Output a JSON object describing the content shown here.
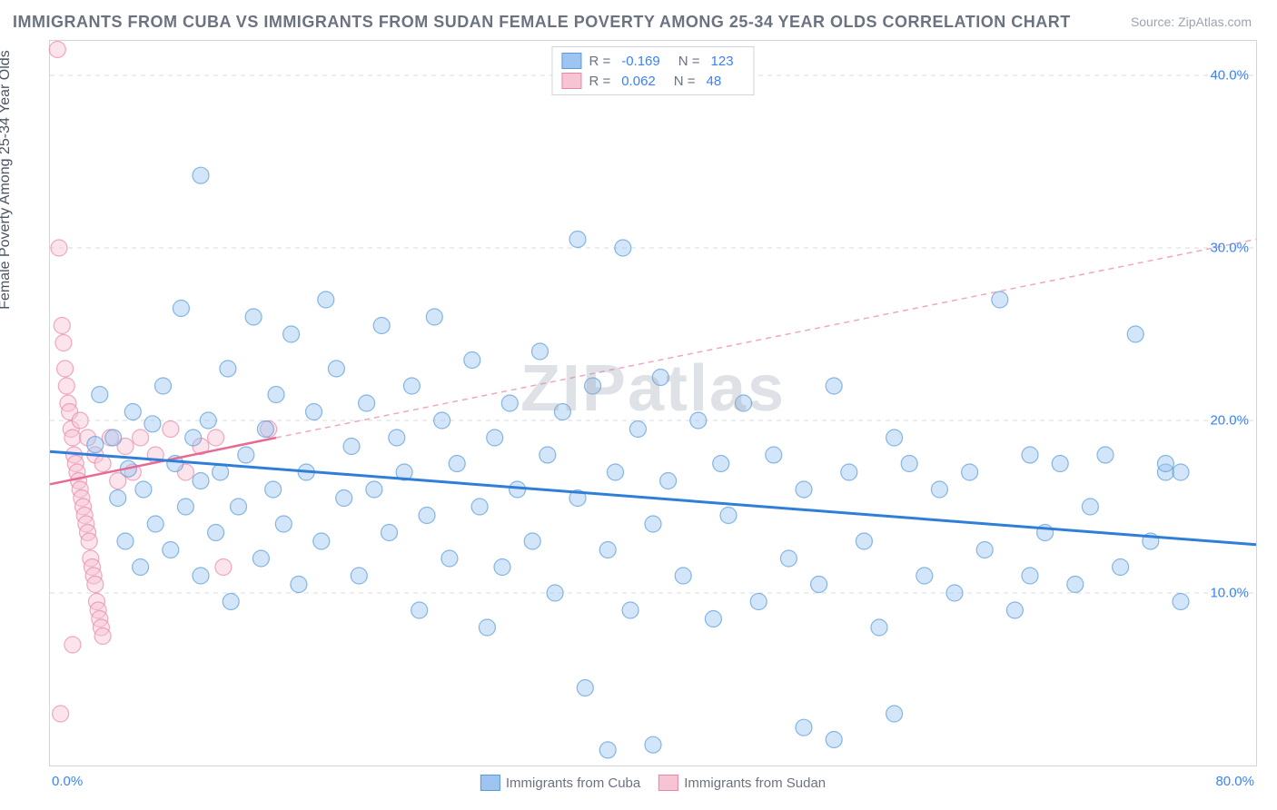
{
  "title": "IMMIGRANTS FROM CUBA VS IMMIGRANTS FROM SUDAN FEMALE POVERTY AMONG 25-34 YEAR OLDS CORRELATION CHART",
  "source_label": "Source:",
  "source_name": "ZipAtlas.com",
  "ylabel": "Female Poverty Among 25-34 Year Olds",
  "watermark": "ZIPatlas",
  "chart": {
    "type": "scatter",
    "xlim": [
      0,
      80
    ],
    "ylim": [
      0,
      42
    ],
    "y_gridlines": [
      10,
      20,
      30,
      40
    ],
    "y_tick_labels": [
      "10.0%",
      "20.0%",
      "30.0%",
      "40.0%"
    ],
    "x_tick_left": "0.0%",
    "x_tick_right": "80.0%",
    "grid_color": "#d7dbe0",
    "border_color": "#d1d5db",
    "background_color": "#ffffff",
    "marker_radius": 9,
    "marker_opacity": 0.45,
    "series": [
      {
        "id": "cuba",
        "label": "Immigrants from Cuba",
        "color_fill": "#9ec5f1",
        "color_stroke": "#5a9bd5",
        "R": "-0.169",
        "N": "123",
        "trend": {
          "x1": 0,
          "y1": 18.2,
          "x2": 80,
          "y2": 12.8,
          "color": "#2f7ed8",
          "width": 3,
          "dash": "none"
        }
      },
      {
        "id": "sudan",
        "label": "Immigrants from Sudan",
        "color_fill": "#f7c4d4",
        "color_stroke": "#e986a8",
        "R": "0.062",
        "N": "48",
        "trend_solid": {
          "x1": 0,
          "y1": 16.3,
          "x2": 15,
          "y2": 19.0,
          "color": "#e56a94",
          "width": 2.5,
          "dash": "none"
        },
        "trend_dash": {
          "x1": 15,
          "y1": 19.0,
          "x2": 80,
          "y2": 30.5,
          "color": "#f1a6bf",
          "width": 1.5,
          "dash": "6,5"
        }
      }
    ],
    "cuba_points": [
      [
        10,
        34.2
      ],
      [
        3,
        18.6
      ],
      [
        3.3,
        21.5
      ],
      [
        4.2,
        19
      ],
      [
        4.5,
        15.5
      ],
      [
        5,
        13
      ],
      [
        5.2,
        17.2
      ],
      [
        5.5,
        20.5
      ],
      [
        6,
        11.5
      ],
      [
        6.2,
        16
      ],
      [
        6.8,
        19.8
      ],
      [
        7,
        14
      ],
      [
        7.5,
        22
      ],
      [
        8,
        12.5
      ],
      [
        8.3,
        17.5
      ],
      [
        8.7,
        26.5
      ],
      [
        9,
        15
      ],
      [
        9.5,
        19
      ],
      [
        10,
        11
      ],
      [
        10,
        16.5
      ],
      [
        10.5,
        20
      ],
      [
        11,
        13.5
      ],
      [
        11.3,
        17
      ],
      [
        11.8,
        23
      ],
      [
        12,
        9.5
      ],
      [
        12.5,
        15
      ],
      [
        13,
        18
      ],
      [
        13.5,
        26
      ],
      [
        14,
        12
      ],
      [
        14.3,
        19.5
      ],
      [
        14.8,
        16
      ],
      [
        15,
        21.5
      ],
      [
        15.5,
        14
      ],
      [
        16,
        25
      ],
      [
        16.5,
        10.5
      ],
      [
        17,
        17
      ],
      [
        17.5,
        20.5
      ],
      [
        18,
        13
      ],
      [
        18.3,
        27
      ],
      [
        19,
        23
      ],
      [
        19.5,
        15.5
      ],
      [
        20,
        18.5
      ],
      [
        20.5,
        11
      ],
      [
        21,
        21
      ],
      [
        21.5,
        16
      ],
      [
        22,
        25.5
      ],
      [
        22.5,
        13.5
      ],
      [
        23,
        19
      ],
      [
        23.5,
        17
      ],
      [
        24,
        22
      ],
      [
        24.5,
        9
      ],
      [
        25,
        14.5
      ],
      [
        25.5,
        26
      ],
      [
        26,
        20
      ],
      [
        26.5,
        12
      ],
      [
        27,
        17.5
      ],
      [
        28,
        23.5
      ],
      [
        28.5,
        15
      ],
      [
        29,
        8
      ],
      [
        29.5,
        19
      ],
      [
        30,
        11.5
      ],
      [
        30.5,
        21
      ],
      [
        31,
        16
      ],
      [
        32,
        13
      ],
      [
        32.5,
        24
      ],
      [
        33,
        18
      ],
      [
        33.5,
        10
      ],
      [
        34,
        20.5
      ],
      [
        35,
        15.5
      ],
      [
        35,
        30.5
      ],
      [
        35.5,
        4.5
      ],
      [
        36,
        22
      ],
      [
        37,
        12.5
      ],
      [
        37.5,
        17
      ],
      [
        38,
        30
      ],
      [
        38.5,
        9
      ],
      [
        39,
        19.5
      ],
      [
        40,
        14
      ],
      [
        40.5,
        22.5
      ],
      [
        41,
        16.5
      ],
      [
        42,
        11
      ],
      [
        43,
        20
      ],
      [
        44,
        8.5
      ],
      [
        44.5,
        17.5
      ],
      [
        45,
        14.5
      ],
      [
        46,
        21
      ],
      [
        47,
        9.5
      ],
      [
        48,
        18
      ],
      [
        49,
        12
      ],
      [
        50,
        16
      ],
      [
        51,
        10.5
      ],
      [
        52,
        22
      ],
      [
        53,
        17
      ],
      [
        54,
        13
      ],
      [
        55,
        8
      ],
      [
        56,
        19
      ],
      [
        57,
        17.5
      ],
      [
        58,
        11
      ],
      [
        59,
        16
      ],
      [
        60,
        10
      ],
      [
        61,
        17
      ],
      [
        62,
        12.5
      ],
      [
        63,
        27
      ],
      [
        64,
        9
      ],
      [
        65,
        18
      ],
      [
        65,
        11
      ],
      [
        66,
        13.5
      ],
      [
        67,
        17.5
      ],
      [
        68,
        10.5
      ],
      [
        69,
        15
      ],
      [
        70,
        18
      ],
      [
        71,
        11.5
      ],
      [
        72,
        25
      ],
      [
        73,
        13
      ],
      [
        74,
        17
      ],
      [
        75,
        9.5
      ],
      [
        37,
        0.9
      ],
      [
        40,
        1.2
      ],
      [
        50,
        2.2
      ],
      [
        56,
        3
      ],
      [
        74,
        17.5
      ],
      [
        75,
        17
      ],
      [
        52,
        1.5
      ]
    ],
    "sudan_points": [
      [
        0.5,
        41.5
      ],
      [
        0.6,
        30
      ],
      [
        0.8,
        25.5
      ],
      [
        0.9,
        24.5
      ],
      [
        1,
        23
      ],
      [
        1.1,
        22
      ],
      [
        1.2,
        21
      ],
      [
        1.3,
        20.5
      ],
      [
        1.4,
        19.5
      ],
      [
        1.5,
        19
      ],
      [
        1.6,
        18
      ],
      [
        1.7,
        17.5
      ],
      [
        1.8,
        17
      ],
      [
        1.9,
        16.5
      ],
      [
        2,
        16
      ],
      [
        2.1,
        15.5
      ],
      [
        2.2,
        15
      ],
      [
        2.3,
        14.5
      ],
      [
        2.4,
        14
      ],
      [
        2.5,
        13.5
      ],
      [
        2.6,
        13
      ],
      [
        2.7,
        12
      ],
      [
        2.8,
        11.5
      ],
      [
        2.9,
        11
      ],
      [
        3,
        10.5
      ],
      [
        3.1,
        9.5
      ],
      [
        3.2,
        9
      ],
      [
        3.3,
        8.5
      ],
      [
        3.4,
        8
      ],
      [
        3.5,
        7.5
      ],
      [
        0.7,
        3
      ],
      [
        1.5,
        7
      ],
      [
        2,
        20
      ],
      [
        2.5,
        19
      ],
      [
        3,
        18
      ],
      [
        3.5,
        17.5
      ],
      [
        4,
        19
      ],
      [
        4.5,
        16.5
      ],
      [
        5,
        18.5
      ],
      [
        5.5,
        17
      ],
      [
        6,
        19
      ],
      [
        7,
        18
      ],
      [
        8,
        19.5
      ],
      [
        9,
        17
      ],
      [
        10,
        18.5
      ],
      [
        11,
        19
      ],
      [
        11.5,
        11.5
      ],
      [
        14.5,
        19.5
      ]
    ]
  },
  "legend_top_labels": {
    "R": "R =",
    "N": "N ="
  },
  "colors": {
    "title": "#6b7280",
    "source": "#9ca3af",
    "tick_label": "#3b82f6",
    "axis_label": "#4b5563"
  }
}
